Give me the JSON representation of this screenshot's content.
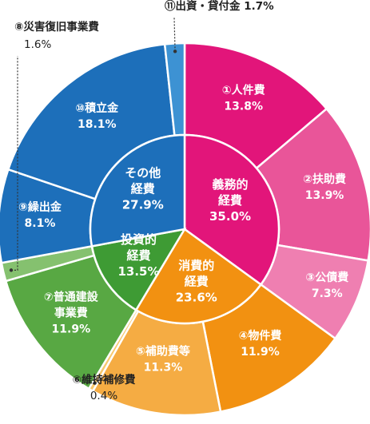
{
  "chart_data": {
    "type": "pie",
    "title": "",
    "outer": [
      {
        "label": "①人件費",
        "value": 13.8,
        "color": "#e2157a"
      },
      {
        "label": "②扶助費",
        "value": 13.9,
        "color": "#e95599"
      },
      {
        "label": "③公債費",
        "value": 7.3,
        "color": "#ef7fb1"
      },
      {
        "label": "④物件費",
        "value": 11.9,
        "color": "#f29111"
      },
      {
        "label": "⑤補助費等",
        "value": 11.3,
        "color": "#f5ac43"
      },
      {
        "label": "⑥維持補修費",
        "value": 0.4,
        "color": "#f7c86e"
      },
      {
        "label": "⑦普通建設事業費",
        "value": 11.9,
        "color": "#58a843"
      },
      {
        "label": "⑧災害復旧事業費",
        "value": 1.6,
        "color": "#85c16f"
      },
      {
        "label": "⑨繰出金",
        "value": 8.1,
        "color": "#1d6fba"
      },
      {
        "label": "⑩積立金",
        "value": 18.1,
        "color": "#1d6fba"
      },
      {
        "label": "⑪出資・貸付金",
        "value": 1.7,
        "color": "#3d92d3"
      }
    ],
    "inner": [
      {
        "label": "義務的経費",
        "value": 35.0,
        "color": "#e2157a"
      },
      {
        "label": "消費的経費",
        "value": 23.6,
        "color": "#f29111"
      },
      {
        "label": "投資的経費",
        "value": 13.5,
        "color": "#3e9b34"
      },
      {
        "label": "その他経費",
        "value": 27.9,
        "color": "#1d6fba"
      }
    ]
  }
}
